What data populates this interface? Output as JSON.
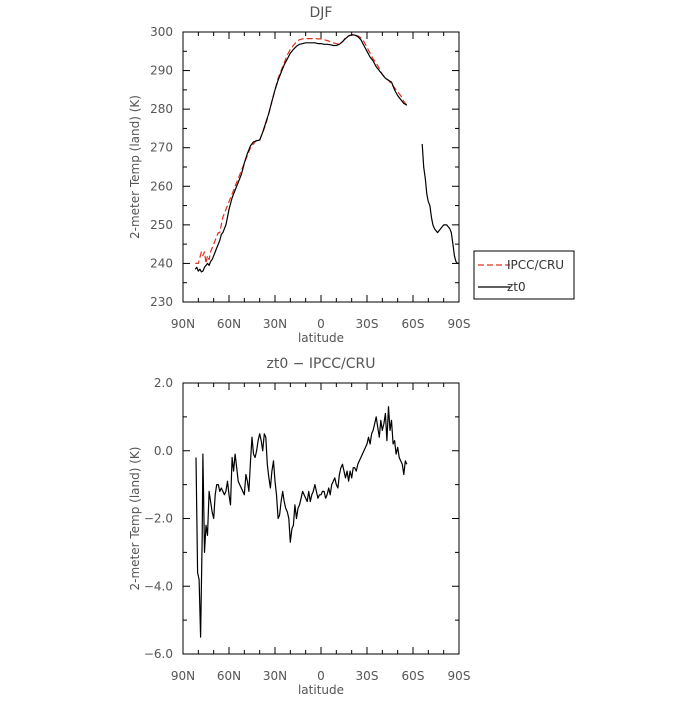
{
  "chart_data": [
    {
      "type": "line",
      "title": "DJF",
      "xlabel": "latitude",
      "ylabel": "2-meter Temp (land) (K)",
      "xlim": [
        90,
        -90
      ],
      "ylim": [
        230,
        300
      ],
      "x_tick_values": [
        90,
        60,
        30,
        0,
        -30,
        -60,
        -90
      ],
      "x_tick_labels": [
        "90N",
        "60N",
        "30N",
        "0",
        "30S",
        "60S",
        "90S"
      ],
      "y_tick_values": [
        230,
        240,
        250,
        260,
        270,
        280,
        290,
        300
      ],
      "y_tick_labels": [
        "230",
        "240",
        "250",
        "260",
        "270",
        "280",
        "290",
        "300"
      ],
      "legend": {
        "placement": "outside-right",
        "entries": [
          {
            "label": "IPCC/CRU",
            "color": "#e0301e",
            "style": "dashed"
          },
          {
            "label": "zt0",
            "color": "#000000",
            "style": "solid"
          }
        ]
      },
      "series": [
        {
          "name": "IPCC/CRU",
          "color": "#e0301e",
          "style": "dashed",
          "x": [
            82,
            80,
            78,
            77,
            76,
            75,
            74,
            73,
            72,
            71,
            70,
            69,
            68,
            67,
            66,
            65,
            64,
            63,
            62,
            61,
            60,
            58,
            56,
            54,
            52,
            50,
            48,
            46,
            44,
            42,
            40,
            38,
            36,
            34,
            32,
            30,
            28,
            26,
            24,
            22,
            20,
            18,
            16,
            14,
            12,
            10,
            8,
            6,
            4,
            2,
            0,
            -2,
            -4,
            -6,
            -8,
            -10,
            -12,
            -14,
            -16,
            -18,
            -20,
            -22,
            -24,
            -26,
            -28,
            -30,
            -32,
            -34,
            -36,
            -38,
            -40,
            -42,
            -44,
            -46,
            -48,
            -50,
            -52,
            -54,
            -56
          ],
          "y": [
            240,
            240,
            243,
            242,
            243,
            240,
            242,
            241,
            243,
            244,
            245,
            246,
            247,
            248,
            248,
            250,
            252,
            253,
            254,
            255,
            256,
            258,
            260,
            262,
            264,
            266,
            268,
            270,
            271,
            272,
            272,
            274,
            276,
            279,
            282,
            285,
            288,
            290,
            292,
            294,
            295.5,
            296.5,
            297.5,
            298,
            298.2,
            298.3,
            298.3,
            298.3,
            298.3,
            298.2,
            298.2,
            298,
            297.8,
            297.5,
            297.2,
            297,
            296.8,
            297.4,
            298.5,
            299,
            299.2,
            299.3,
            299,
            298.5,
            297.5,
            296,
            294.5,
            293,
            292,
            290.5,
            289,
            288,
            287.5,
            286.5,
            285.5,
            284.5,
            283.5,
            282,
            281
          ]
        },
        {
          "name": "zt0",
          "color": "#000000",
          "style": "solid",
          "x": [
            82,
            81,
            80,
            79,
            78,
            77,
            76,
            75,
            74,
            73,
            72,
            71,
            70,
            69,
            68,
            67,
            66,
            65,
            64,
            63,
            62,
            61,
            60,
            58,
            56,
            54,
            52,
            50,
            48,
            46,
            44,
            42,
            40,
            38,
            36,
            34,
            32,
            30,
            28,
            26,
            24,
            22,
            20,
            18,
            16,
            14,
            12,
            10,
            8,
            6,
            4,
            2,
            0,
            -2,
            -4,
            -6,
            -8,
            -10,
            -12,
            -14,
            -16,
            -18,
            -20,
            -22,
            -24,
            -26,
            -28,
            -30,
            -32,
            -34,
            -36,
            -38,
            -40,
            -42,
            -44,
            -46,
            -48,
            -50,
            -52,
            -54,
            -56
          ],
          "y": [
            238.5,
            239,
            238,
            238.5,
            237.8,
            238,
            239,
            239.5,
            240,
            239.5,
            240.5,
            241,
            242,
            243,
            244,
            245,
            246,
            247.5,
            248,
            249,
            250,
            252,
            254,
            257,
            259,
            261,
            263,
            266,
            268.5,
            270.5,
            271.5,
            271.8,
            272,
            274,
            276.5,
            279,
            282,
            285,
            287.5,
            289.5,
            291.5,
            293,
            294.5,
            295.5,
            296.3,
            296.8,
            297,
            297.2,
            297.2,
            297.2,
            297.2,
            297,
            297,
            296.8,
            296.8,
            296.7,
            296.5,
            296.5,
            296.8,
            297.5,
            298.3,
            299,
            299.3,
            299.2,
            298.8,
            298,
            296.5,
            295,
            293.5,
            292.5,
            291,
            290,
            289,
            288,
            287.5,
            287,
            285,
            283.5,
            282.5,
            281.5,
            281
          ]
        },
        {
          "name": "zt0",
          "color": "#000000",
          "style": "solid",
          "x": [
            -66,
            -67,
            -68,
            -69,
            -70,
            -71,
            -72,
            -73,
            -74,
            -75,
            -76,
            -77,
            -78,
            -80,
            -82,
            -84,
            -85,
            -86,
            -87,
            -88,
            -89,
            -90
          ],
          "y": [
            271,
            265,
            262,
            258,
            256,
            255,
            252,
            250,
            249,
            248.5,
            248,
            248.5,
            249,
            250,
            250,
            249,
            248,
            245,
            242,
            240.5,
            240,
            240
          ]
        }
      ]
    },
    {
      "type": "line",
      "title": "zt0 − IPCC/CRU",
      "xlabel": "latitude",
      "ylabel": "2-meter Temp (land) (K)",
      "xlim": [
        90,
        -90
      ],
      "ylim": [
        -6,
        2
      ],
      "x_tick_values": [
        90,
        60,
        30,
        0,
        -30,
        -60,
        -90
      ],
      "x_tick_labels": [
        "90N",
        "60N",
        "30N",
        "0",
        "30S",
        "60S",
        "90S"
      ],
      "y_tick_values": [
        -6,
        -4,
        -2,
        0,
        2
      ],
      "y_tick_labels": [
        "−6.0",
        "−4.0",
        "−2.0",
        "0.0",
        "2.0"
      ],
      "series": [
        {
          "color": "#000000",
          "style": "solid",
          "x": [
            81.5,
            80.5,
            79.5,
            78.5,
            78,
            77.5,
            77,
            76,
            75,
            74,
            73,
            72,
            71,
            70,
            69,
            68,
            67,
            66,
            65,
            64,
            63,
            62,
            61,
            60,
            59,
            58,
            57,
            56,
            55,
            54,
            53,
            52,
            51,
            50,
            49,
            48,
            47,
            46,
            45,
            44,
            43,
            42,
            41,
            40,
            39,
            38,
            37,
            36,
            35,
            34,
            33,
            32,
            31,
            30,
            29,
            28,
            27,
            26,
            25,
            24,
            23,
            22,
            21,
            20,
            19,
            18,
            17,
            16,
            15,
            14,
            13,
            12,
            11,
            10,
            9,
            8,
            7,
            6,
            5,
            4,
            3,
            2,
            1,
            0,
            -1,
            -2,
            -3,
            -4,
            -5,
            -6,
            -7,
            -8,
            -9,
            -10,
            -11,
            -12,
            -13,
            -14,
            -15,
            -16,
            -17,
            -18,
            -19,
            -20,
            -21,
            -22,
            -23,
            -24,
            -25,
            -26,
            -27,
            -28,
            -29,
            -30,
            -31,
            -32,
            -33,
            -34,
            -35,
            -36,
            -37,
            -38,
            -39,
            -40,
            -41,
            -42,
            -43,
            -44,
            -45,
            -46,
            -47,
            -48,
            -49,
            -50,
            -51,
            -52,
            -53,
            -54,
            -55,
            -56
          ],
          "y": [
            -0.2,
            -3.6,
            -3.8,
            -5.5,
            -4.0,
            -2.5,
            -0.1,
            -3.0,
            -2.2,
            -2.5,
            -1.2,
            -1.5,
            -1.8,
            -2.0,
            -1.3,
            -1.0,
            -1.0,
            -1.2,
            -1.1,
            -1.2,
            -1.3,
            -1.2,
            -0.9,
            -1.3,
            -1.6,
            -0.2,
            -0.6,
            -0.1,
            -0.5,
            -0.9,
            -1.0,
            -1.1,
            -1.2,
            -1.3,
            -0.7,
            -0.9,
            -1.2,
            -0.3,
            0.4,
            -0.1,
            -0.2,
            0.0,
            0.3,
            0.5,
            0.3,
            0.0,
            0.5,
            0.4,
            -0.4,
            -0.8,
            -1.1,
            -0.6,
            -0.3,
            -0.9,
            -1.3,
            -2.0,
            -1.9,
            -1.5,
            -1.2,
            -1.5,
            -1.7,
            -1.8,
            -2.0,
            -2.7,
            -2.3,
            -2.2,
            -1.6,
            -2.0,
            -1.7,
            -1.6,
            -1.4,
            -1.2,
            -1.3,
            -1.4,
            -1.5,
            -1.2,
            -1.5,
            -1.3,
            -1.2,
            -1.0,
            -1.2,
            -1.4,
            -1.3,
            -1.3,
            -1.2,
            -1.2,
            -1.4,
            -1.3,
            -1.1,
            -1.3,
            -1.0,
            -0.9,
            -0.8,
            -1.0,
            -1.1,
            -0.7,
            -0.5,
            -0.4,
            -0.6,
            -0.8,
            -0.6,
            -0.9,
            -0.6,
            -0.8,
            -0.5,
            -0.5,
            -0.6,
            -0.4,
            -0.3,
            -0.2,
            -0.1,
            0.0,
            0.1,
            0.2,
            0.4,
            0.2,
            0.5,
            0.6,
            0.8,
            1.0,
            0.7,
            0.4,
            0.9,
            0.6,
            0.8,
            1.1,
            0.3,
            1.3,
            0.6,
            0.9,
            0.2,
            0.3,
            -0.1,
            0.1,
            -0.2,
            -0.3,
            -0.4,
            -0.7,
            -0.3,
            -0.4
          ]
        }
      ]
    }
  ]
}
